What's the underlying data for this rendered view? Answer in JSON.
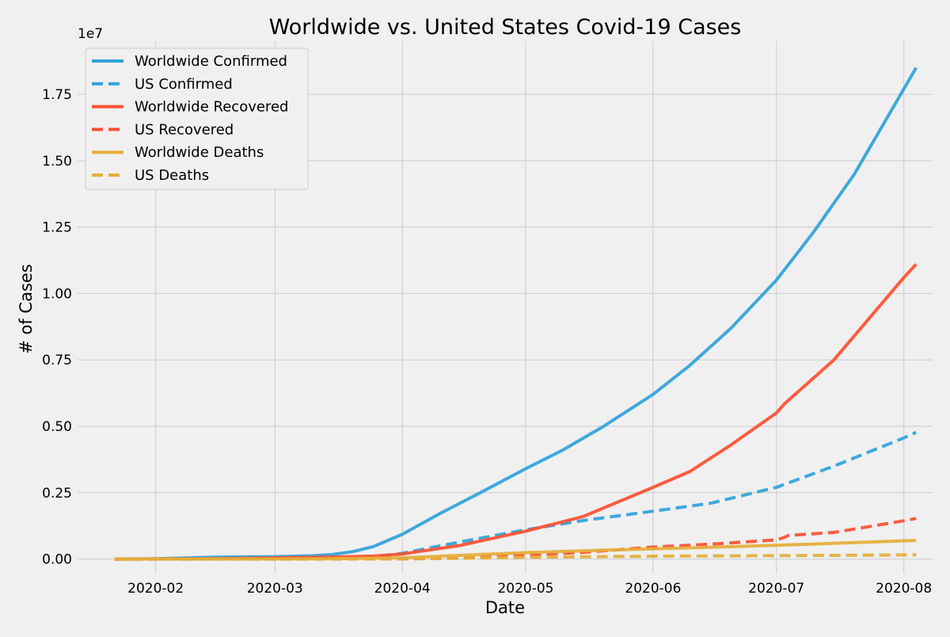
{
  "chart_data": {
    "type": "line",
    "title": "Worldwide vs. United States Covid-19 Cases",
    "xlabel": "Date",
    "ylabel": "# of Cases",
    "y_offset_label": "1e7",
    "y_scale": 10000000,
    "xlim": [
      "2020-01-13",
      "2020-08-08"
    ],
    "ylim": [
      -550000,
      19500000
    ],
    "x_ticks": [
      {
        "date": "2020-02-01",
        "label": "2020-02"
      },
      {
        "date": "2020-03-01",
        "label": "2020-03"
      },
      {
        "date": "2020-04-01",
        "label": "2020-04"
      },
      {
        "date": "2020-05-01",
        "label": "2020-05"
      },
      {
        "date": "2020-06-01",
        "label": "2020-06"
      },
      {
        "date": "2020-07-01",
        "label": "2020-07"
      },
      {
        "date": "2020-08-01",
        "label": "2020-08"
      }
    ],
    "y_ticks": [
      {
        "value": 0,
        "label": "0.00"
      },
      {
        "value": 2500000,
        "label": "0.25"
      },
      {
        "value": 5000000,
        "label": "0.50"
      },
      {
        "value": 7500000,
        "label": "0.75"
      },
      {
        "value": 10000000,
        "label": "1.00"
      },
      {
        "value": 12500000,
        "label": "1.25"
      },
      {
        "value": 15000000,
        "label": "1.50"
      },
      {
        "value": 17500000,
        "label": "1.75"
      }
    ],
    "grid": true,
    "legend_position": "top-left",
    "series": [
      {
        "name": "Worldwide Confirmed",
        "color": "#30a2da",
        "dash": "solid",
        "points": [
          [
            "2020-01-22",
            555
          ],
          [
            "2020-02-01",
            12000
          ],
          [
            "2020-02-15",
            69000
          ],
          [
            "2020-03-01",
            88000
          ],
          [
            "2020-03-10",
            120000
          ],
          [
            "2020-03-15",
            170000
          ],
          [
            "2020-03-20",
            280000
          ],
          [
            "2020-03-25",
            470000
          ],
          [
            "2020-04-01",
            930000
          ],
          [
            "2020-04-10",
            1700000
          ],
          [
            "2020-04-20",
            2500000
          ],
          [
            "2020-05-01",
            3400000
          ],
          [
            "2020-05-10",
            4100000
          ],
          [
            "2020-05-20",
            5000000
          ],
          [
            "2020-06-01",
            6200000
          ],
          [
            "2020-06-10",
            7300000
          ],
          [
            "2020-06-20",
            8700000
          ],
          [
            "2020-07-01",
            10500000
          ],
          [
            "2020-07-10",
            12300000
          ],
          [
            "2020-07-20",
            14500000
          ],
          [
            "2020-08-01",
            17700000
          ],
          [
            "2020-08-04",
            18500000
          ]
        ]
      },
      {
        "name": "US Confirmed",
        "color": "#30a2da",
        "dash": "dashed",
        "points": [
          [
            "2020-01-22",
            1
          ],
          [
            "2020-03-01",
            30
          ],
          [
            "2020-03-15",
            3500
          ],
          [
            "2020-03-22",
            33000
          ],
          [
            "2020-04-01",
            215000
          ],
          [
            "2020-04-15",
            640000
          ],
          [
            "2020-05-01",
            1100000
          ],
          [
            "2020-05-15",
            1450000
          ],
          [
            "2020-06-01",
            1800000
          ],
          [
            "2020-06-15",
            2100000
          ],
          [
            "2020-07-01",
            2700000
          ],
          [
            "2020-07-15",
            3500000
          ],
          [
            "2020-08-01",
            4560000
          ],
          [
            "2020-08-04",
            4770000
          ]
        ]
      },
      {
        "name": "Worldwide Recovered",
        "color": "#fc4f30",
        "dash": "solid",
        "points": [
          [
            "2020-01-22",
            28
          ],
          [
            "2020-02-15",
            10000
          ],
          [
            "2020-03-01",
            45000
          ],
          [
            "2020-03-15",
            75000
          ],
          [
            "2020-03-25",
            110000
          ],
          [
            "2020-04-01",
            190000
          ],
          [
            "2020-04-15",
            510000
          ],
          [
            "2020-05-01",
            1050000
          ],
          [
            "2020-05-15",
            1600000
          ],
          [
            "2020-06-01",
            2700000
          ],
          [
            "2020-06-10",
            3300000
          ],
          [
            "2020-06-20",
            4300000
          ],
          [
            "2020-07-01",
            5500000
          ],
          [
            "2020-07-03",
            5850000
          ],
          [
            "2020-07-15",
            7500000
          ],
          [
            "2020-08-01",
            10600000
          ],
          [
            "2020-08-04",
            11100000
          ]
        ]
      },
      {
        "name": "US Recovered",
        "color": "#fc4f30",
        "dash": "dashed",
        "points": [
          [
            "2020-01-22",
            0
          ],
          [
            "2020-04-01",
            8000
          ],
          [
            "2020-04-15",
            40000
          ],
          [
            "2020-05-01",
            150000
          ],
          [
            "2020-05-15",
            250000
          ],
          [
            "2020-06-01",
            450000
          ],
          [
            "2020-06-15",
            560000
          ],
          [
            "2020-07-01",
            720000
          ],
          [
            "2020-07-03",
            820000
          ],
          [
            "2020-07-04",
            890000
          ],
          [
            "2020-07-15",
            1000000
          ],
          [
            "2020-08-01",
            1440000
          ],
          [
            "2020-08-04",
            1530000
          ]
        ]
      },
      {
        "name": "Worldwide Deaths",
        "color": "#e5ae38",
        "dash": "solid",
        "points": [
          [
            "2020-01-22",
            17
          ],
          [
            "2020-03-01",
            3000
          ],
          [
            "2020-03-15",
            6500
          ],
          [
            "2020-04-01",
            47000
          ],
          [
            "2020-04-15",
            135000
          ],
          [
            "2020-05-01",
            240000
          ],
          [
            "2020-05-15",
            310000
          ],
          [
            "2020-06-01",
            380000
          ],
          [
            "2020-06-15",
            440000
          ],
          [
            "2020-07-01",
            515000
          ],
          [
            "2020-07-15",
            590000
          ],
          [
            "2020-08-01",
            685000
          ],
          [
            "2020-08-04",
            700000
          ]
        ]
      },
      {
        "name": "US Deaths",
        "color": "#e5ae38",
        "dash": "dashed",
        "points": [
          [
            "2020-01-22",
            0
          ],
          [
            "2020-03-15",
            70
          ],
          [
            "2020-04-01",
            5000
          ],
          [
            "2020-04-15",
            30000
          ],
          [
            "2020-05-01",
            65000
          ],
          [
            "2020-05-15",
            87000
          ],
          [
            "2020-06-01",
            106000
          ],
          [
            "2020-06-15",
            116000
          ],
          [
            "2020-07-01",
            128000
          ],
          [
            "2020-07-15",
            137000
          ],
          [
            "2020-08-01",
            154000
          ],
          [
            "2020-08-04",
            157000
          ]
        ]
      }
    ]
  }
}
